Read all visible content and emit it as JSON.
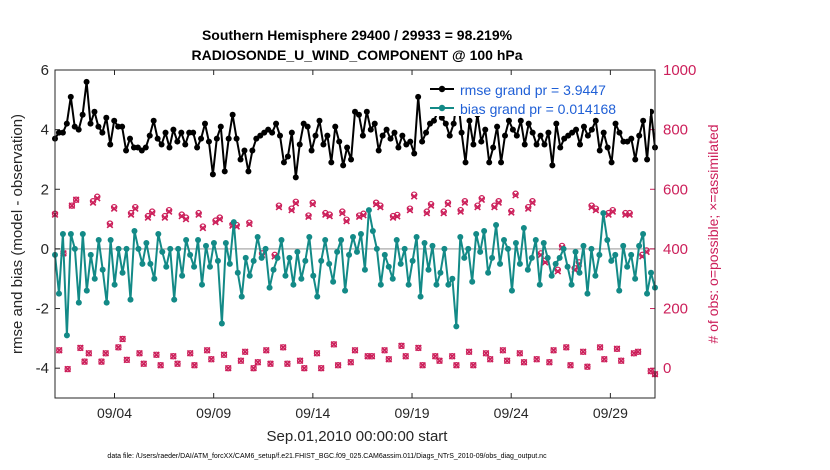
{
  "chart_data": {
    "type": "line",
    "title": [
      "Southern Hemisphere 29400 / 29933 = 98.219%",
      "RADIOSONDE_U_WIND_COMPONENT @ 100 hPa"
    ],
    "xlabel": "Sep.01,2010 00:00:00 start",
    "ylabel_left": "rmse and bias (model - observation)",
    "ylabel_right": "# of obs: o=possible; ×=assimilated",
    "xlim": [
      1,
      31.25
    ],
    "ylim_left": [
      -5,
      6
    ],
    "ylim_right": [
      -100,
      1000
    ],
    "xtick_positions": [
      4,
      9,
      14,
      19,
      24,
      29
    ],
    "xtick_labels": [
      "09/04",
      "09/09",
      "09/14",
      "09/19",
      "09/24",
      "09/29"
    ],
    "yticks_left": [
      -4,
      -2,
      0,
      2,
      4,
      6
    ],
    "yticks_right": [
      0,
      200,
      400,
      600,
      800,
      1000
    ],
    "legend": [
      "rmse grand pr = 3.9447",
      "bias grand pr = 0.014168"
    ],
    "colors": {
      "rmse": "#000000",
      "bias": "#138a87",
      "obs": "#cc1f5a",
      "legend_text": "#1f5fd6",
      "zero_line": "#b8b8b8"
    },
    "series": [
      {
        "name": "rmse",
        "axis": "left",
        "values": [
          3.7,
          3.9,
          3.9,
          4.2,
          5.1,
          4.1,
          4.0,
          4.5,
          5.6,
          4.2,
          4.6,
          4.1,
          3.9,
          4.4,
          3.5,
          4.3,
          4.1,
          4.1,
          3.3,
          3.7,
          3.4,
          3.4,
          3.3,
          3.4,
          3.8,
          4.3,
          3.7,
          3.5,
          3.9,
          3.4,
          4.0,
          3.6,
          3.9,
          3.5,
          3.9,
          3.9,
          3.4,
          3.7,
          4.2,
          3.6,
          2.5,
          3.7,
          4.1,
          2.6,
          3.7,
          4.5,
          3.7,
          3.0,
          3.3,
          2.6,
          3.3,
          3.7,
          3.8,
          3.9,
          4.0,
          3.9,
          4.2,
          3.8,
          2.9,
          3.1,
          3.9,
          2.4,
          3.5,
          4.2,
          4.1,
          3.3,
          3.8,
          4.3,
          3.5,
          3.8,
          2.9,
          4.1,
          3.6,
          2.8,
          3.4,
          3.0,
          4.6,
          4.5,
          3.8,
          4.6,
          4.0,
          4.2,
          3.3,
          3.8,
          4.0,
          3.7,
          3.9,
          3.4,
          3.8,
          3.5,
          3.6,
          3.2,
          5.1,
          3.6,
          3.9,
          4.2,
          4.3,
          4.6,
          4.4,
          4.2,
          3.8,
          4.2,
          5.2,
          3.9,
          2.9,
          4.3,
          3.5,
          4.5,
          3.6,
          4.0,
          2.9,
          3.4,
          4.1,
          2.9,
          3.8,
          4.3,
          4.0,
          3.8,
          4.3,
          3.5,
          4.2,
          3.9,
          3.5,
          3.8,
          3.5,
          3.9,
          2.8,
          4.2,
          3.4,
          3.7,
          3.8,
          3.9,
          4.0,
          3.5,
          4.1,
          3.8,
          4.0,
          4.3,
          3.3,
          3.9,
          3.4,
          2.9,
          4.2,
          3.9,
          3.6,
          3.6,
          3.7,
          3.0,
          3.8,
          4.3,
          3.0,
          4.6,
          3.4
        ]
      },
      {
        "name": "bias",
        "axis": "left",
        "values": [
          -0.2,
          -1.5,
          0.5,
          -2.9,
          0.5,
          0.0,
          -1.8,
          0.5,
          -1.4,
          -0.2,
          -1.0,
          0.3,
          -0.7,
          -1.8,
          0.3,
          -1.2,
          0.0,
          -0.8,
          0.0,
          -1.7,
          0.6,
          0.0,
          -0.5,
          0.2,
          -0.5,
          -1.0,
          0.5,
          -0.1,
          -0.6,
          0.0,
          -1.7,
          0.0,
          -0.9,
          0.3,
          -0.2,
          -0.6,
          0.3,
          -1.2,
          0.1,
          -0.6,
          0.2,
          -0.4,
          -2.5,
          0.2,
          -0.5,
          0.9,
          -0.8,
          -1.6,
          -0.3,
          -0.9,
          -0.4,
          0.4,
          -0.3,
          0.0,
          -1.3,
          -0.7,
          -0.3,
          0.3,
          -0.9,
          -0.3,
          -1.2,
          -0.1,
          -1.0,
          -0.4,
          0.4,
          -0.9,
          -1.6,
          -0.4,
          0.3,
          -0.5,
          -1.1,
          -0.1,
          0.3,
          -1.4,
          -0.2,
          0.4,
          -0.1,
          0.5,
          -0.7,
          1.3,
          0.6,
          0.0,
          -1.2,
          -0.2,
          -0.6,
          -1.0,
          0.3,
          -0.5,
          0.0,
          -1.2,
          -0.4,
          0.4,
          -1.6,
          0.2,
          -0.7,
          0.1,
          -1.2,
          -0.8,
          0.0,
          -1.2,
          -1.0,
          -2.6,
          0.4,
          -0.3,
          0.0,
          -1.1,
          0.5,
          -0.1,
          0.6,
          -0.8,
          -0.3,
          0.8,
          -0.5,
          0.3,
          0.0,
          -1.4,
          0.2,
          -0.5,
          0.7,
          -0.7,
          -0.3,
          0.3,
          -1.2,
          0.2,
          -0.3,
          -0.9,
          -0.5,
          -0.3,
          0.0,
          -0.6,
          -1.2,
          -0.1,
          -0.8,
          0.1,
          -1.5,
          0.0,
          -0.9,
          -0.2,
          1.2,
          0.3,
          -0.4,
          -0.2,
          -1.4,
          0.1,
          -0.6,
          -0.2,
          -1.0,
          0.1,
          0.5,
          -1.5,
          -0.8,
          -1.3
        ]
      },
      {
        "name": "obs possible",
        "axis": "right",
        "marker": "o",
        "values": [
          518,
          60,
          385,
          -3,
          545,
          565,
          68,
          22,
          50,
          560,
          575,
          22,
          50,
          485,
          540,
          70,
          98,
          28,
          520,
          540,
          50,
          15,
          510,
          525,
          45,
          10,
          510,
          530,
          40,
          15,
          515,
          505,
          50,
          10,
          520,
          475,
          60,
          30,
          495,
          505,
          45,
          0,
          482,
          480,
          25,
          55,
          488,
          0,
          20,
          385,
          60,
          15,
          380,
          545,
          70,
          15,
          535,
          558,
          25,
          0,
          512,
          555,
          50,
          0,
          520,
          515,
          80,
          10,
          525,
          498,
          20,
          60,
          512,
          518,
          40,
          40,
          555,
          545,
          60,
          30,
          510,
          514,
          75,
          40,
          535,
          582,
          68,
          10,
          525,
          550,
          40,
          25,
          525,
          555,
          40,
          10,
          530,
          560,
          55,
          10,
          545,
          570,
          50,
          30,
          545,
          560,
          60,
          25,
          527,
          585,
          50,
          20,
          540,
          560,
          30,
          385,
          360,
          20,
          60,
          330,
          410,
          70,
          10,
          335,
          355,
          55,
          5,
          545,
          535,
          70,
          30,
          520,
          530,
          65,
          25,
          520,
          520,
          50,
          55,
          380,
          395,
          -10,
          -20
        ]
      },
      {
        "name": "obs assimilated",
        "axis": "right",
        "marker": "x",
        "values": [
          515,
          60,
          385,
          -3,
          545,
          565,
          68,
          22,
          50,
          555,
          570,
          22,
          50,
          480,
          535,
          70,
          98,
          28,
          515,
          535,
          50,
          15,
          505,
          520,
          45,
          10,
          505,
          525,
          40,
          15,
          510,
          500,
          50,
          10,
          515,
          470,
          60,
          30,
          490,
          500,
          45,
          0,
          478,
          475,
          25,
          55,
          484,
          0,
          20,
          380,
          60,
          15,
          375,
          540,
          70,
          15,
          530,
          553,
          25,
          0,
          508,
          550,
          50,
          0,
          515,
          510,
          80,
          10,
          520,
          493,
          20,
          60,
          508,
          513,
          40,
          40,
          550,
          540,
          60,
          30,
          505,
          509,
          75,
          40,
          530,
          576,
          68,
          10,
          520,
          545,
          40,
          25,
          520,
          550,
          40,
          10,
          525,
          555,
          55,
          10,
          540,
          565,
          50,
          30,
          540,
          555,
          60,
          25,
          522,
          580,
          50,
          20,
          535,
          555,
          30,
          380,
          355,
          20,
          60,
          325,
          405,
          70,
          10,
          330,
          350,
          55,
          5,
          540,
          530,
          70,
          30,
          515,
          525,
          65,
          25,
          515,
          515,
          50,
          55,
          375,
          390,
          -10,
          -20
        ]
      }
    ]
  },
  "footer": "data file: /Users/raeder/DAI/ATM_forcXX/CAM6_setup/f.e21.FHIST_BGC.f09_025.CAM6assim.011/Diags_NTrS_2010-09/obs_diag_output.nc"
}
